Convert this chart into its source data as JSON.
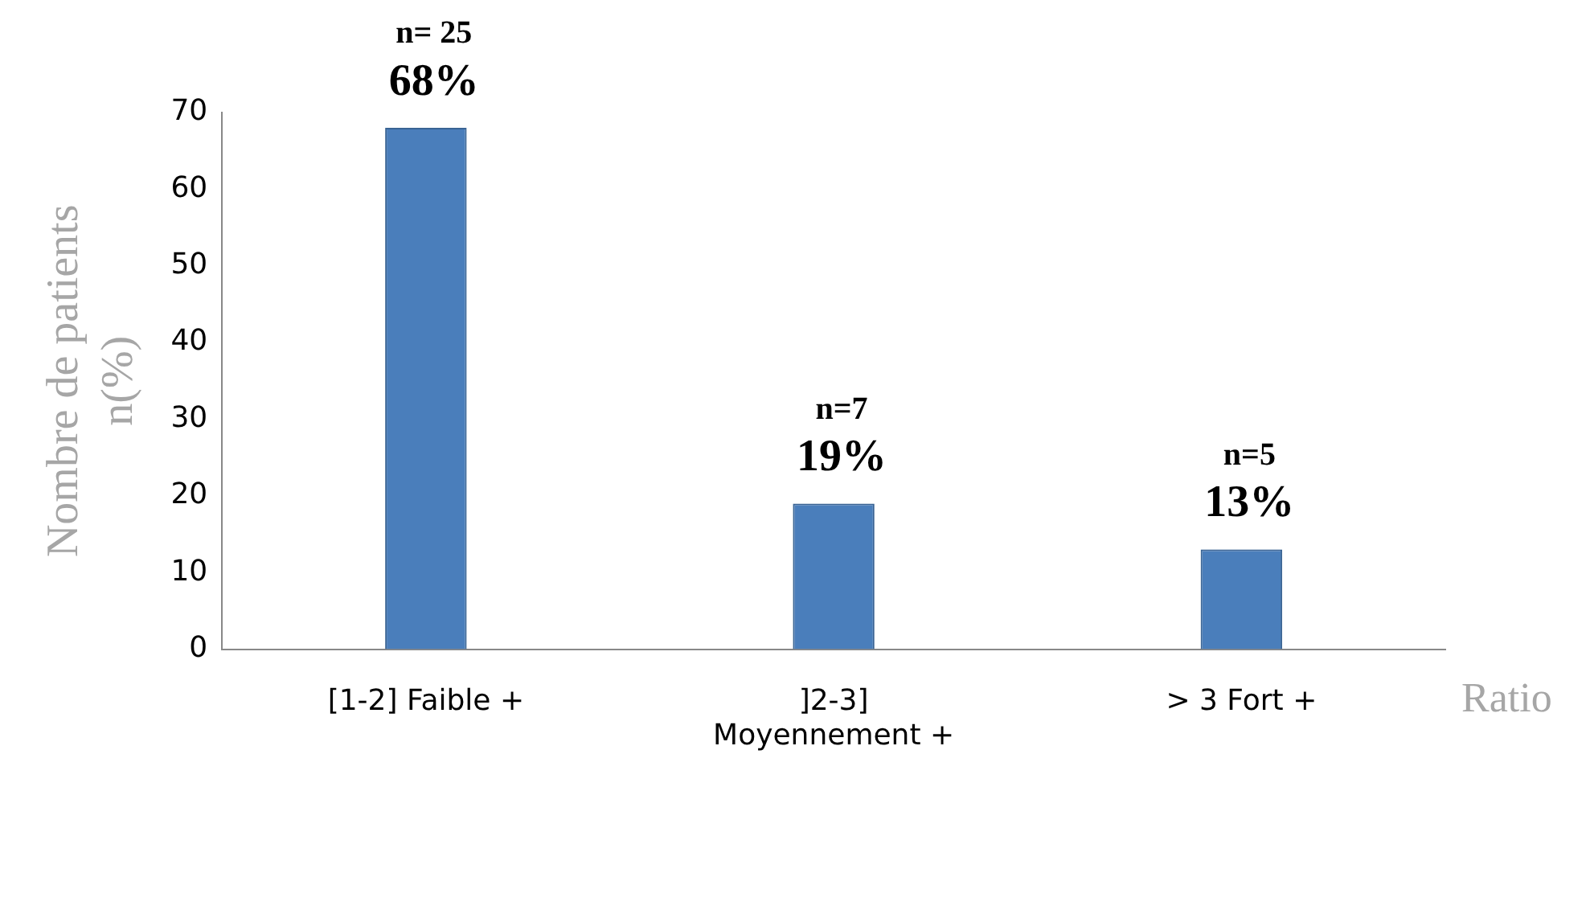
{
  "chart_data": {
    "type": "bar",
    "categories": [
      "[1-2] Faible +",
      "]2-3] Moyennement +",
      "> 3 Fort +"
    ],
    "values": [
      68,
      19,
      13
    ],
    "color": "#4a7ebb",
    "value_labels": [
      "68%",
      "19%",
      "13%"
    ],
    "annotations": [
      {
        "text": "n= 25",
        "x": "[1-2] Faible +",
        "y": 68
      },
      {
        "text": "n=7",
        "x": "]2-3] Moyennement +",
        "y": 19
      },
      {
        "text": "n=5",
        "x": "> 3 Fort +",
        "y": 13
      }
    ],
    "ylabel": "Nombre de patients n(%)",
    "xlabel": "Ratio",
    "ylim": [
      0,
      70
    ],
    "yticks": [
      0,
      10,
      20,
      30,
      40,
      50,
      60,
      70
    ],
    "grid": false,
    "legend": false
  }
}
